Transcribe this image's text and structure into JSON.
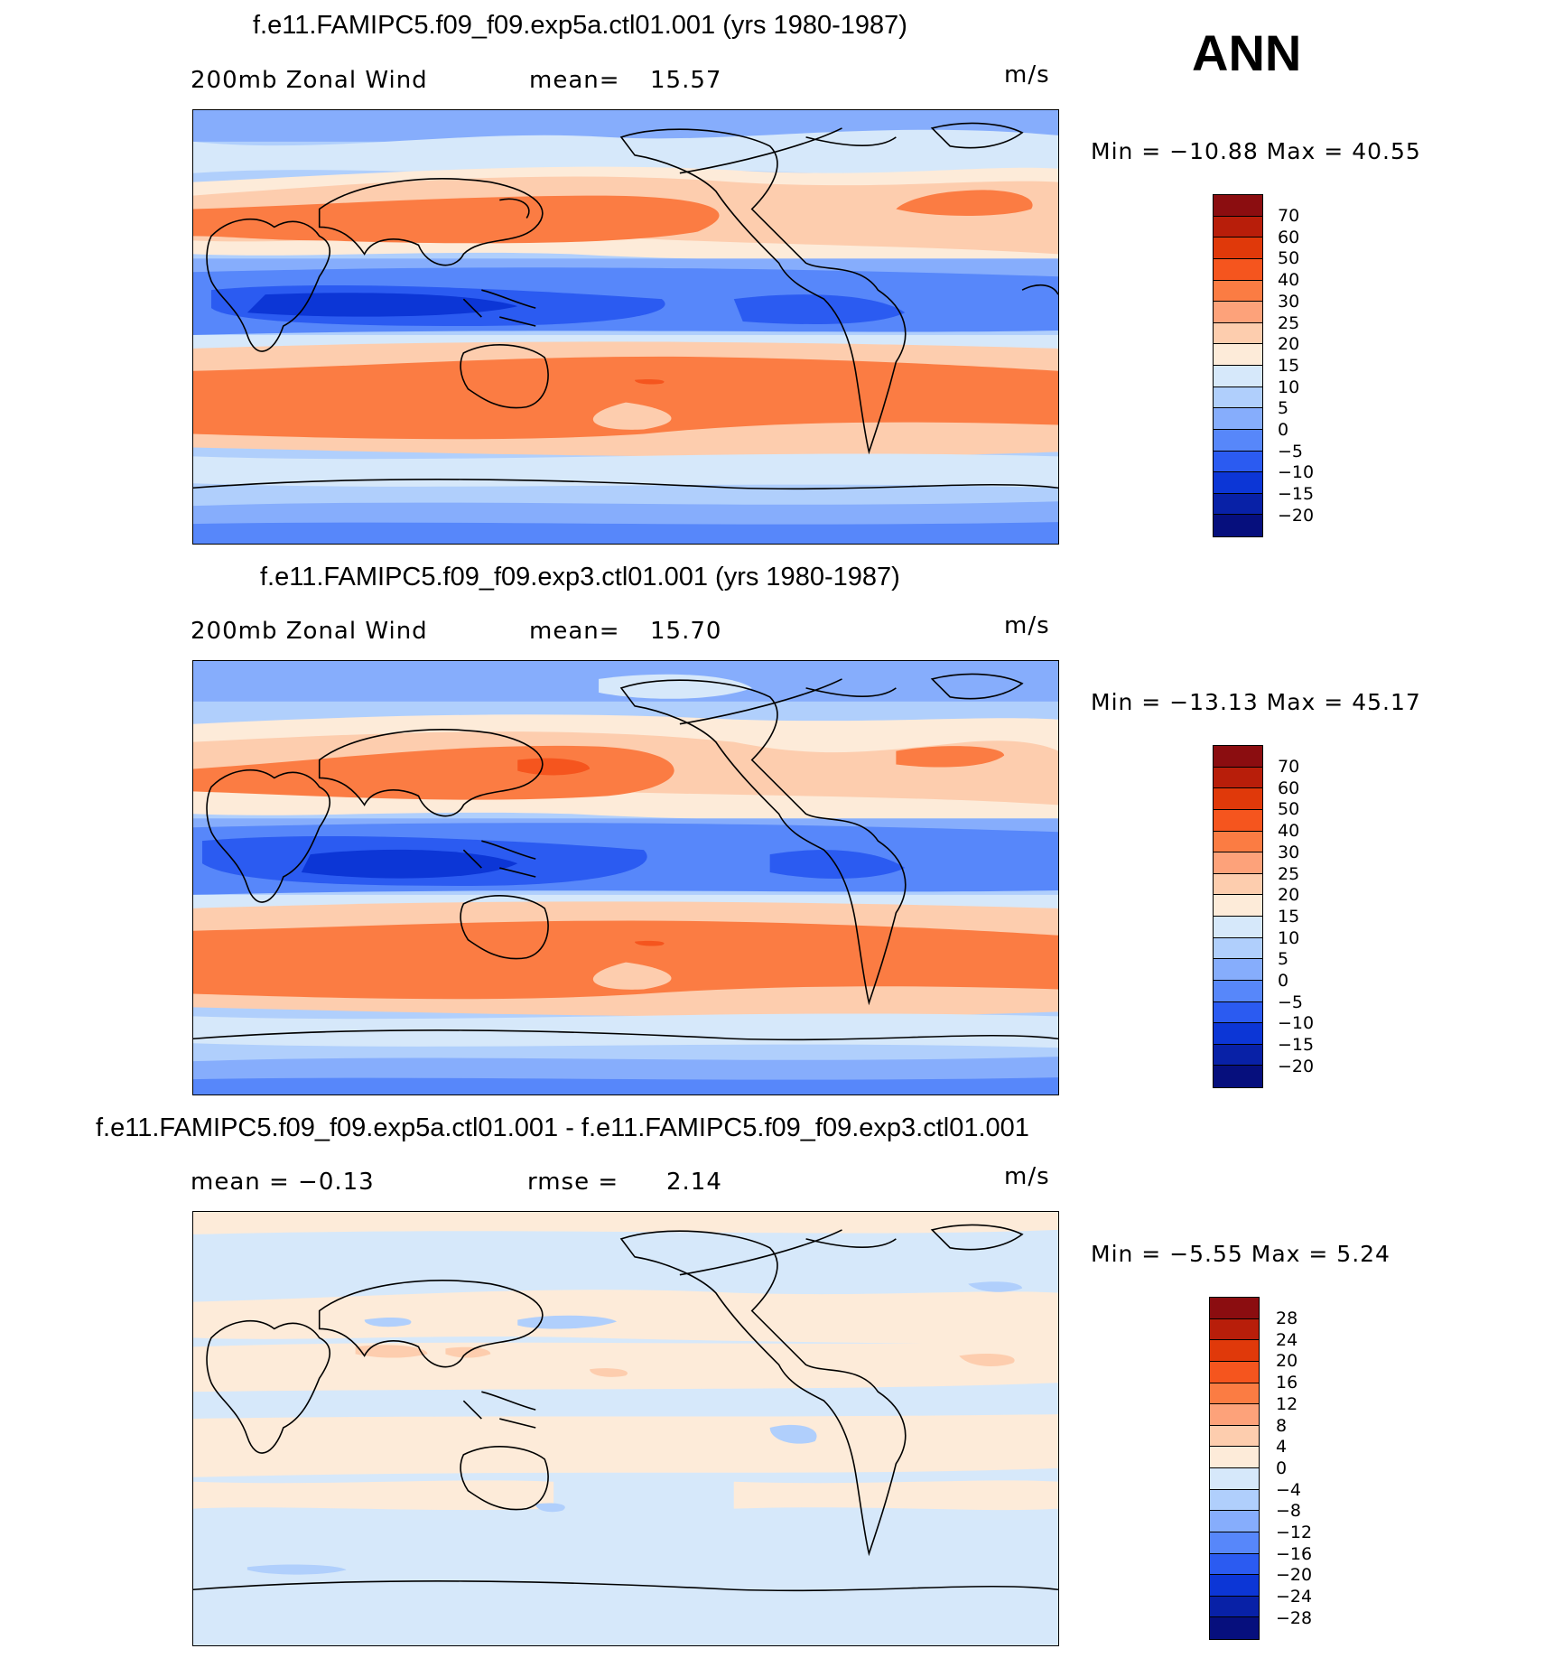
{
  "season": "ANN",
  "panels": [
    {
      "title": "f.e11.FAMIPC5.f09_f09.exp5a.ctl01.001 (yrs 1980-1987)",
      "left_label": "200mb  Zonal  Wind",
      "stat_label": "mean=",
      "stat_value": "15.57",
      "units": "m/s",
      "min_label": "Min  =  −10.88  Max  =    40.55",
      "colorbar_labels": [
        "70",
        "60",
        "50",
        "40",
        "30",
        "25",
        "20",
        "15",
        "10",
        "5",
        "0",
        "−5",
        "−10",
        "−15",
        "−20"
      ]
    },
    {
      "title": "f.e11.FAMIPC5.f09_f09.exp3.ctl01.001 (yrs 1980-1987)",
      "left_label": "200mb  Zonal  Wind",
      "stat_label": "mean=",
      "stat_value": "15.70",
      "units": "m/s",
      "min_label": "Min  =  −13.13  Max  =    45.17",
      "colorbar_labels": [
        "70",
        "60",
        "50",
        "40",
        "30",
        "25",
        "20",
        "15",
        "10",
        "5",
        "0",
        "−5",
        "−10",
        "−15",
        "−20"
      ]
    },
    {
      "title": "f.e11.FAMIPC5.f09_f09.exp5a.ctl01.001 - f.e11.FAMIPC5.f09_f09.exp3.ctl01.001",
      "left_label": "mean  =   −0.13",
      "stat_label": "rmse  =",
      "stat_value": "2.14",
      "units": "m/s",
      "min_label": "Min  =    −5.55  Max  =      5.24",
      "colorbar_labels": [
        "28",
        "24",
        "20",
        "16",
        "12",
        "8",
        "4",
        "0",
        "−4",
        "−8",
        "−12",
        "−16",
        "−20",
        "−24",
        "−28"
      ]
    }
  ],
  "colors": {
    "abs_scale": [
      "#8b0d10",
      "#b81e0a",
      "#e0390a",
      "#f5551e",
      "#fb7c43",
      "#fda27a",
      "#fdcdae",
      "#fdebd9",
      "#d6e8fa",
      "#b0cffc",
      "#86adfc",
      "#5787fa",
      "#2b5bf1",
      "#0c36d6",
      "#0821a7",
      "#060f7d"
    ],
    "diff_scale": [
      "#8b0d10",
      "#b81e0a",
      "#e0390a",
      "#f5551e",
      "#fb7c43",
      "#fda27a",
      "#fdcdae",
      "#fdebd9",
      "#d6e8fa",
      "#b0cffc",
      "#86adfc",
      "#5787fa",
      "#2b5bf1",
      "#0c36d6",
      "#0821a7",
      "#060f7d"
    ]
  }
}
